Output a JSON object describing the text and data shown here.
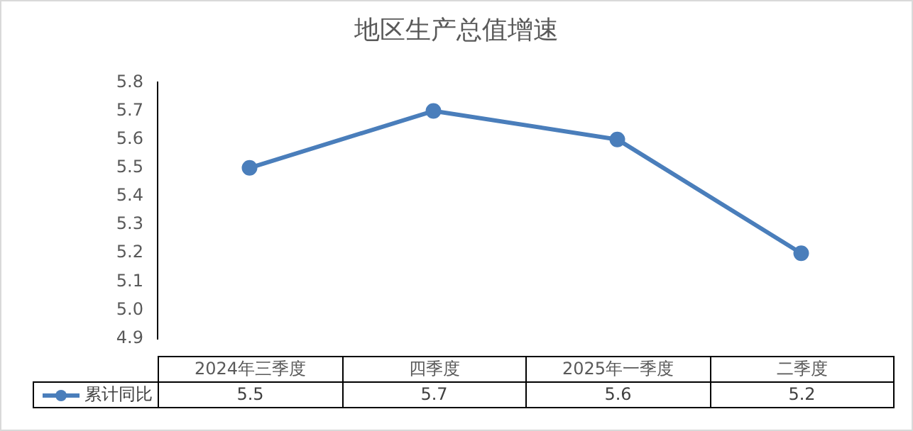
{
  "chart_data": {
    "type": "line",
    "title": "地区生产总值增速",
    "categories": [
      "2024年三季度",
      "四季度",
      "2025年一季度",
      "二季度"
    ],
    "series": [
      {
        "name": "累计同比",
        "color": "#4a7ebb",
        "values": [
          5.5,
          5.7,
          5.6,
          5.2
        ]
      }
    ],
    "ylim": [
      4.9,
      5.8
    ],
    "yticks": [
      4.9,
      {
        "value": 5,
        "label": "5.0"
      },
      5.1,
      5.2,
      5.3,
      5.4,
      5.5,
      5.6,
      5.7,
      5.8
    ],
    "grid": false,
    "legend": "bottom",
    "marker": "circle",
    "line_style": "solid",
    "data_labels": true
  }
}
